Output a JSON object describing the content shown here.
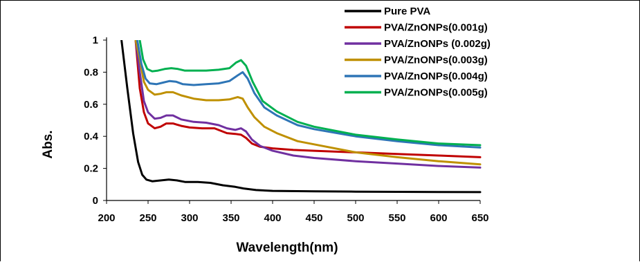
{
  "chart_data": {
    "type": "line",
    "title": "",
    "xlabel": "Wavelength(nm)",
    "ylabel": "Abs.",
    "xlim": [
      200,
      650
    ],
    "ylim": [
      0,
      1
    ],
    "x_ticks": [
      "200",
      "250",
      "300",
      "350",
      "400",
      "450",
      "500",
      "550",
      "600",
      "650"
    ],
    "y_ticks": [
      "0",
      "0.2",
      "0.4",
      "0.6",
      "0.8",
      "1"
    ],
    "grid": false,
    "legend_position": "top-right",
    "series": [
      {
        "name": "Pure PVA",
        "color": "#000000",
        "points": [
          [
            218,
            1.0
          ],
          [
            225,
            0.7
          ],
          [
            232,
            0.42
          ],
          [
            238,
            0.24
          ],
          [
            243,
            0.16
          ],
          [
            248,
            0.13
          ],
          [
            255,
            0.12
          ],
          [
            265,
            0.125
          ],
          [
            275,
            0.13
          ],
          [
            285,
            0.125
          ],
          [
            295,
            0.115
          ],
          [
            310,
            0.115
          ],
          [
            325,
            0.11
          ],
          [
            340,
            0.095
          ],
          [
            355,
            0.085
          ],
          [
            365,
            0.075
          ],
          [
            380,
            0.065
          ],
          [
            400,
            0.06
          ],
          [
            450,
            0.057
          ],
          [
            500,
            0.055
          ],
          [
            550,
            0.054
          ],
          [
            600,
            0.053
          ],
          [
            650,
            0.052
          ]
        ]
      },
      {
        "name": "PVA/ZnONPs(0.001g)",
        "color": "#c00000",
        "points": [
          [
            235,
            1.0
          ],
          [
            240,
            0.7
          ],
          [
            245,
            0.55
          ],
          [
            250,
            0.48
          ],
          [
            258,
            0.45
          ],
          [
            265,
            0.46
          ],
          [
            272,
            0.48
          ],
          [
            280,
            0.48
          ],
          [
            290,
            0.465
          ],
          [
            300,
            0.455
          ],
          [
            315,
            0.45
          ],
          [
            330,
            0.45
          ],
          [
            345,
            0.42
          ],
          [
            355,
            0.415
          ],
          [
            362,
            0.41
          ],
          [
            368,
            0.39
          ],
          [
            375,
            0.355
          ],
          [
            385,
            0.335
          ],
          [
            400,
            0.325
          ],
          [
            425,
            0.315
          ],
          [
            450,
            0.31
          ],
          [
            500,
            0.3
          ],
          [
            550,
            0.29
          ],
          [
            600,
            0.28
          ],
          [
            650,
            0.27
          ]
        ]
      },
      {
        "name": "PVA/ZnONPs (0.002g)",
        "color": "#7030a0",
        "points": [
          [
            235,
            1.0
          ],
          [
            240,
            0.8
          ],
          [
            245,
            0.62
          ],
          [
            250,
            0.55
          ],
          [
            258,
            0.51
          ],
          [
            265,
            0.515
          ],
          [
            272,
            0.53
          ],
          [
            280,
            0.53
          ],
          [
            290,
            0.505
          ],
          [
            305,
            0.49
          ],
          [
            320,
            0.485
          ],
          [
            335,
            0.47
          ],
          [
            345,
            0.45
          ],
          [
            355,
            0.44
          ],
          [
            362,
            0.45
          ],
          [
            368,
            0.43
          ],
          [
            375,
            0.38
          ],
          [
            385,
            0.34
          ],
          [
            400,
            0.31
          ],
          [
            425,
            0.28
          ],
          [
            450,
            0.265
          ],
          [
            500,
            0.245
          ],
          [
            550,
            0.23
          ],
          [
            600,
            0.215
          ],
          [
            650,
            0.205
          ]
        ]
      },
      {
        "name": "PVA/ZnONPs(0.003g)",
        "color": "#bf9000",
        "points": [
          [
            235,
            1.0
          ],
          [
            240,
            0.88
          ],
          [
            245,
            0.74
          ],
          [
            250,
            0.69
          ],
          [
            258,
            0.66
          ],
          [
            265,
            0.665
          ],
          [
            272,
            0.675
          ],
          [
            280,
            0.675
          ],
          [
            290,
            0.655
          ],
          [
            305,
            0.635
          ],
          [
            320,
            0.625
          ],
          [
            335,
            0.625
          ],
          [
            348,
            0.63
          ],
          [
            358,
            0.645
          ],
          [
            364,
            0.635
          ],
          [
            370,
            0.58
          ],
          [
            378,
            0.52
          ],
          [
            390,
            0.46
          ],
          [
            405,
            0.42
          ],
          [
            430,
            0.37
          ],
          [
            450,
            0.35
          ],
          [
            500,
            0.3
          ],
          [
            550,
            0.27
          ],
          [
            600,
            0.245
          ],
          [
            650,
            0.225
          ]
        ]
      },
      {
        "name": "PVA/ZnONPs(0.004g)",
        "color": "#2e75b6",
        "points": [
          [
            237,
            1.0
          ],
          [
            242,
            0.85
          ],
          [
            247,
            0.76
          ],
          [
            252,
            0.73
          ],
          [
            260,
            0.725
          ],
          [
            268,
            0.735
          ],
          [
            276,
            0.745
          ],
          [
            284,
            0.74
          ],
          [
            292,
            0.725
          ],
          [
            305,
            0.72
          ],
          [
            320,
            0.725
          ],
          [
            335,
            0.73
          ],
          [
            348,
            0.745
          ],
          [
            358,
            0.78
          ],
          [
            364,
            0.8
          ],
          [
            370,
            0.76
          ],
          [
            378,
            0.67
          ],
          [
            390,
            0.58
          ],
          [
            405,
            0.53
          ],
          [
            430,
            0.47
          ],
          [
            450,
            0.445
          ],
          [
            500,
            0.4
          ],
          [
            550,
            0.37
          ],
          [
            600,
            0.345
          ],
          [
            650,
            0.33
          ]
        ]
      },
      {
        "name": "PVA/ZnONPs(0.005g)",
        "color": "#00b050",
        "points": [
          [
            240,
            1.0
          ],
          [
            244,
            0.88
          ],
          [
            249,
            0.82
          ],
          [
            255,
            0.805
          ],
          [
            262,
            0.81
          ],
          [
            270,
            0.82
          ],
          [
            278,
            0.825
          ],
          [
            286,
            0.82
          ],
          [
            294,
            0.81
          ],
          [
            305,
            0.81
          ],
          [
            320,
            0.81
          ],
          [
            335,
            0.815
          ],
          [
            348,
            0.825
          ],
          [
            356,
            0.86
          ],
          [
            362,
            0.875
          ],
          [
            368,
            0.84
          ],
          [
            376,
            0.74
          ],
          [
            388,
            0.62
          ],
          [
            405,
            0.555
          ],
          [
            430,
            0.49
          ],
          [
            450,
            0.46
          ],
          [
            500,
            0.41
          ],
          [
            550,
            0.38
          ],
          [
            600,
            0.355
          ],
          [
            650,
            0.345
          ]
        ]
      }
    ]
  }
}
